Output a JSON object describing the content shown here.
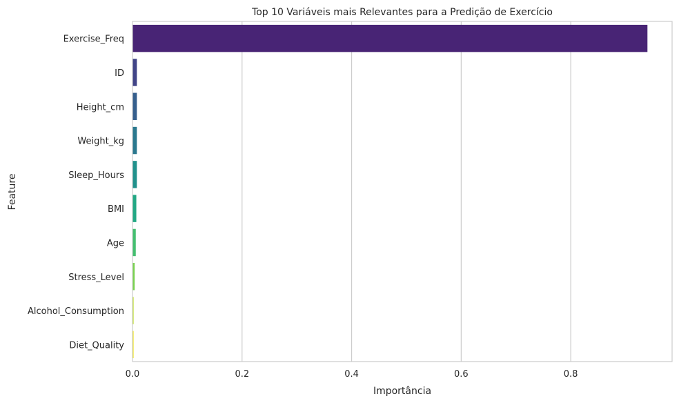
{
  "chart_data": {
    "type": "bar",
    "orientation": "horizontal",
    "title": "Top 10 Variáveis mais Relevantes para a Predição de Exercício",
    "xlabel": "Importância",
    "ylabel": "Feature",
    "xlim": [
      0,
      0.985
    ],
    "xticks": [
      "0.0",
      "0.2",
      "0.4",
      "0.6",
      "0.8"
    ],
    "xtick_values": [
      0,
      0.2,
      0.4,
      0.6,
      0.8
    ],
    "grid": "vertical",
    "categories": [
      "Exercise_Freq",
      "ID",
      "Height_cm",
      "Weight_kg",
      "Sleep_Hours",
      "BMI",
      "Age",
      "Stress_Level",
      "Alcohol_Consumption",
      "Diet_Quality"
    ],
    "values": [
      0.94,
      0.008,
      0.008,
      0.008,
      0.008,
      0.007,
      0.006,
      0.004,
      0.002,
      0.002
    ],
    "colors": [
      "#482475",
      "#414487",
      "#355f8d",
      "#2a788e",
      "#21918c",
      "#22a884",
      "#44bf70",
      "#7ad151",
      "#bddf26",
      "#f1e51d"
    ]
  }
}
